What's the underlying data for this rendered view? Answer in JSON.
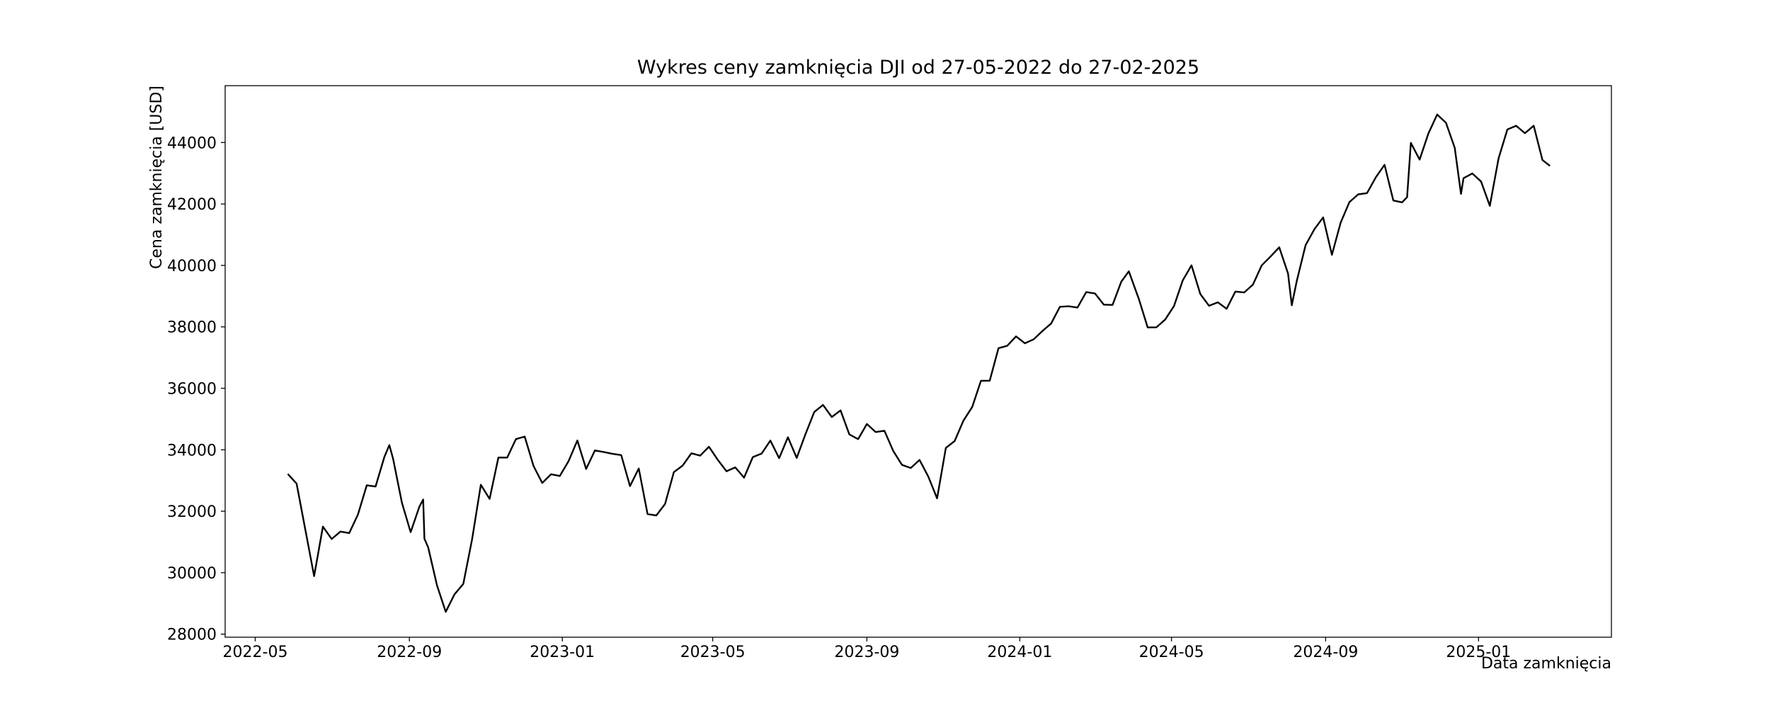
{
  "chart_data": {
    "type": "line",
    "title": "Wykres ceny zamknięcia DJI od 27-05-2022 do 27-02-2025",
    "x_label": "Data zamknięcia",
    "y_label": "Cena zamknięcia [USD]",
    "color": "#000000",
    "grid": false,
    "xlim": [
      "2022-04-07",
      "2025-04-17"
    ],
    "xticks": [
      {
        "value": "2022-05-01",
        "label": "2022-05"
      },
      {
        "value": "2022-09-01",
        "label": "2022-09"
      },
      {
        "value": "2023-01-01",
        "label": "2023-01"
      },
      {
        "value": "2023-05-01",
        "label": "2023-05"
      },
      {
        "value": "2023-09-01",
        "label": "2023-09"
      },
      {
        "value": "2024-01-01",
        "label": "2024-01"
      },
      {
        "value": "2024-05-01",
        "label": "2024-05"
      },
      {
        "value": "2024-09-01",
        "label": "2024-09"
      },
      {
        "value": "2025-01-01",
        "label": "2025-01"
      }
    ],
    "ylim": [
      27900,
      45850
    ],
    "yticks": [
      28000,
      30000,
      32000,
      34000,
      36000,
      38000,
      40000,
      42000,
      44000
    ],
    "x": [
      "2022-05-27",
      "2022-06-03",
      "2022-06-10",
      "2022-06-17",
      "2022-06-24",
      "2022-07-01",
      "2022-07-08",
      "2022-07-15",
      "2022-07-22",
      "2022-07-29",
      "2022-08-05",
      "2022-08-12",
      "2022-08-16",
      "2022-08-19",
      "2022-08-26",
      "2022-09-02",
      "2022-09-09",
      "2022-09-12",
      "2022-09-13",
      "2022-09-16",
      "2022-09-23",
      "2022-09-30",
      "2022-10-07",
      "2022-10-14",
      "2022-10-21",
      "2022-10-28",
      "2022-11-04",
      "2022-11-11",
      "2022-11-18",
      "2022-11-25",
      "2022-12-02",
      "2022-12-09",
      "2022-12-16",
      "2022-12-23",
      "2022-12-30",
      "2023-01-06",
      "2023-01-13",
      "2023-01-20",
      "2023-01-27",
      "2023-02-03",
      "2023-02-10",
      "2023-02-17",
      "2023-02-24",
      "2023-03-03",
      "2023-03-10",
      "2023-03-17",
      "2023-03-24",
      "2023-03-31",
      "2023-04-07",
      "2023-04-14",
      "2023-04-21",
      "2023-04-28",
      "2023-05-05",
      "2023-05-12",
      "2023-05-19",
      "2023-05-26",
      "2023-06-02",
      "2023-06-09",
      "2023-06-16",
      "2023-06-23",
      "2023-06-30",
      "2023-07-07",
      "2023-07-14",
      "2023-07-21",
      "2023-07-28",
      "2023-08-04",
      "2023-08-11",
      "2023-08-18",
      "2023-08-25",
      "2023-09-01",
      "2023-09-08",
      "2023-09-15",
      "2023-09-22",
      "2023-09-29",
      "2023-10-06",
      "2023-10-13",
      "2023-10-20",
      "2023-10-27",
      "2023-11-03",
      "2023-11-10",
      "2023-11-17",
      "2023-11-24",
      "2023-12-01",
      "2023-12-08",
      "2023-12-15",
      "2023-12-22",
      "2023-12-29",
      "2024-01-05",
      "2024-01-12",
      "2024-01-19",
      "2024-01-26",
      "2024-02-02",
      "2024-02-09",
      "2024-02-16",
      "2024-02-23",
      "2024-03-01",
      "2024-03-08",
      "2024-03-15",
      "2024-03-22",
      "2024-03-28",
      "2024-04-05",
      "2024-04-12",
      "2024-04-19",
      "2024-04-26",
      "2024-05-03",
      "2024-05-10",
      "2024-05-17",
      "2024-05-24",
      "2024-05-31",
      "2024-06-07",
      "2024-06-14",
      "2024-06-21",
      "2024-06-28",
      "2024-07-05",
      "2024-07-12",
      "2024-07-19",
      "2024-07-26",
      "2024-08-02",
      "2024-08-05",
      "2024-08-09",
      "2024-08-16",
      "2024-08-23",
      "2024-08-30",
      "2024-09-06",
      "2024-09-13",
      "2024-09-20",
      "2024-09-27",
      "2024-10-04",
      "2024-10-11",
      "2024-10-18",
      "2024-10-25",
      "2024-11-01",
      "2024-11-05",
      "2024-11-08",
      "2024-11-15",
      "2024-11-22",
      "2024-11-29",
      "2024-12-06",
      "2024-12-13",
      "2024-12-18",
      "2024-12-20",
      "2024-12-27",
      "2025-01-03",
      "2025-01-10",
      "2025-01-17",
      "2025-01-24",
      "2025-01-31",
      "2025-02-07",
      "2025-02-14",
      "2025-02-21",
      "2025-02-27"
    ],
    "values": [
      33213,
      32900,
      31393,
      29888,
      31500,
      31097,
      31338,
      31288,
      31899,
      32845,
      32803,
      33761,
      34152,
      33706,
      32283,
      31318,
      32151,
      32381,
      31104,
      30822,
      29590,
      28725,
      29296,
      29634,
      31082,
      32861,
      32403,
      33747,
      33745,
      34347,
      34430,
      33476,
      32920,
      33203,
      33147,
      33630,
      34302,
      33375,
      33978,
      33926,
      33869,
      33826,
      32817,
      33391,
      31909,
      31862,
      32238,
      33274,
      33485,
      33886,
      33809,
      34098,
      33674,
      33300,
      33427,
      33093,
      33762,
      33876,
      34299,
      33727,
      34408,
      33734,
      34509,
      35228,
      35459,
      35066,
      35281,
      34500,
      34346,
      34838,
      34577,
      34618,
      33964,
      33508,
      33407,
      33670,
      33127,
      32418,
      34061,
      34283,
      34947,
      35390,
      36245,
      36248,
      37306,
      37385,
      37690,
      37466,
      37593,
      37863,
      38109,
      38654,
      38671,
      38628,
      39131,
      39087,
      38723,
      38715,
      39475,
      39807,
      38904,
      37983,
      37986,
      38239,
      38676,
      39512,
      40003,
      39070,
      38686,
      38799,
      38589,
      39150,
      39119,
      39375,
      40001,
      40288,
      40589,
      39737,
      38703,
      39497,
      40659,
      41175,
      41563,
      40345,
      41394,
      42063,
      42313,
      42352,
      42864,
      43275,
      42114,
      42052,
      42222,
      43989,
      43444,
      44296,
      44910,
      44643,
      43828,
      42327,
      42840,
      42992,
      42732,
      41938,
      43488,
      44424,
      44545,
      44303,
      44546,
      43428,
      43239
    ]
  }
}
